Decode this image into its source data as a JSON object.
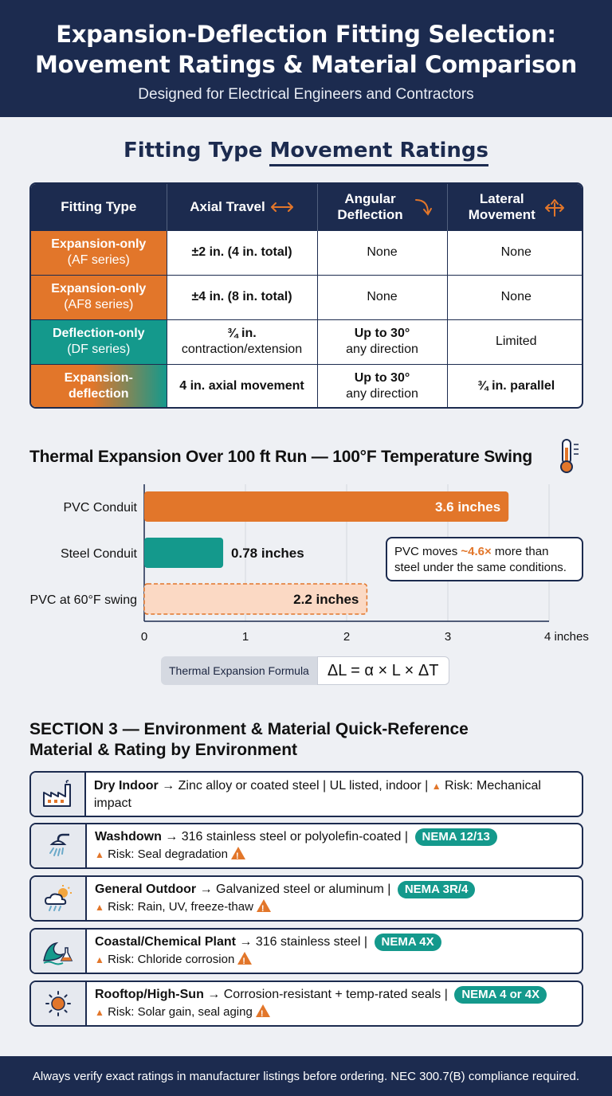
{
  "header": {
    "title_line1": "Expansion-Deflection Fitting Selection:",
    "title_line2": "Movement Ratings & Material Comparison",
    "subtitle": "Designed for Electrical Engineers and Contractors"
  },
  "section1": {
    "title_part1": "Fitting Type",
    "title_part2": "Movement Ratings",
    "columns": [
      "Fitting Type",
      "Axial Travel",
      "Angular Deflection",
      "Lateral Movement"
    ],
    "column_icons": [
      "",
      "double-arrow-icon",
      "curved-arrow-icon",
      "multi-arrow-icon"
    ],
    "rows": [
      {
        "type": "Expansion-only",
        "series": "(AF series)",
        "axial": "±2 in. (4 in. total)",
        "angular_1": "None",
        "angular_2": "",
        "lateral": "None",
        "style": "org",
        "axial_bold": true,
        "angular_bold": false,
        "lateral_bold": false
      },
      {
        "type": "Expansion-only",
        "series": "(AF8 series)",
        "axial": "±4 in. (8 in. total)",
        "angular_1": "None",
        "angular_2": "",
        "lateral": "None",
        "style": "org",
        "axial_bold": true,
        "angular_bold": false,
        "lateral_bold": false
      },
      {
        "type": "Deflection-only",
        "series": "(DF series)",
        "axial_1": "¾ in.",
        "axial_2": "contraction/extension",
        "angular_1": "Up to 30°",
        "angular_2": "any direction",
        "lateral": "Limited",
        "style": "teal"
      },
      {
        "type": "Expansion-deflection",
        "type_1": "Expansion-",
        "type_2": "deflection",
        "series": "",
        "axial": "4 in. axial movement",
        "angular_1": "Up to 30°",
        "angular_2": "any direction",
        "lateral": "¾ in. parallel",
        "style": "grad"
      }
    ]
  },
  "chart_data": {
    "type": "bar",
    "orientation": "horizontal",
    "title": "Thermal Expansion Over 100 ft Run — 100°F Temperature Swing",
    "categories": [
      "PVC Conduit",
      "Steel Conduit",
      "PVC at 60°F swing"
    ],
    "values": [
      3.6,
      0.78,
      2.2
    ],
    "value_labels": [
      "3.6 inches",
      "0.78 inches",
      "2.2 inches"
    ],
    "colors": [
      "#e2762a",
      "#14998c",
      "#fbd9c4"
    ],
    "styles": [
      "solid",
      "solid",
      "dashed"
    ],
    "xlim": [
      0,
      4
    ],
    "xticks": [
      "0",
      "1",
      "2",
      "3",
      "4 inches"
    ],
    "grid": true,
    "legend": "none"
  },
  "callout": {
    "line1_prefix": "PVC moves ",
    "line1_highlight": "~4.6×",
    "line1_suffix": " more than",
    "line2": "steel under the same conditions."
  },
  "formula": {
    "label": "Thermal Expansion Formula",
    "equation": "ΔL = α × L × ΔT"
  },
  "section3": {
    "title_line1": "SECTION 3 — Environment & Material Quick-Reference",
    "title_line2": "Material & Rating by Environment",
    "environments": [
      {
        "icon": "factory-icon",
        "name": "Dry Indoor",
        "material": " → Zinc alloy or coated steel | UL listed, indoor | ",
        "risk_inline": "Risk: Mechanical impact",
        "badge": "",
        "risk": ""
      },
      {
        "icon": "shower-icon",
        "name": "Washdown",
        "material": " → 316 stainless steel or polyolefin-coated | ",
        "badge": "NEMA 12/13",
        "risk": "Risk: Seal degradation"
      },
      {
        "icon": "weather-icon",
        "name": "General Outdoor",
        "material": " → Galvanized steel or aluminum | ",
        "badge": "NEMA 3R/4",
        "risk": "Risk: Rain, UV, freeze-thaw"
      },
      {
        "icon": "wave-flask-icon",
        "name": "Coastal/Chemical Plant",
        "material": " → 316 stainless steel | ",
        "badge": "NEMA 4X",
        "risk": "Risk: Chloride corrosion"
      },
      {
        "icon": "sun-icon",
        "name": "Rooftop/High-Sun",
        "material": " → Corrosion-resistant + temp-rated seals | ",
        "badge": "NEMA 4 or 4X",
        "risk": "Risk: Solar gain, seal aging"
      }
    ]
  },
  "footer": {
    "text": "Always verify exact ratings in manufacturer listings before ordering. NEC 300.7(B) compliance required."
  }
}
